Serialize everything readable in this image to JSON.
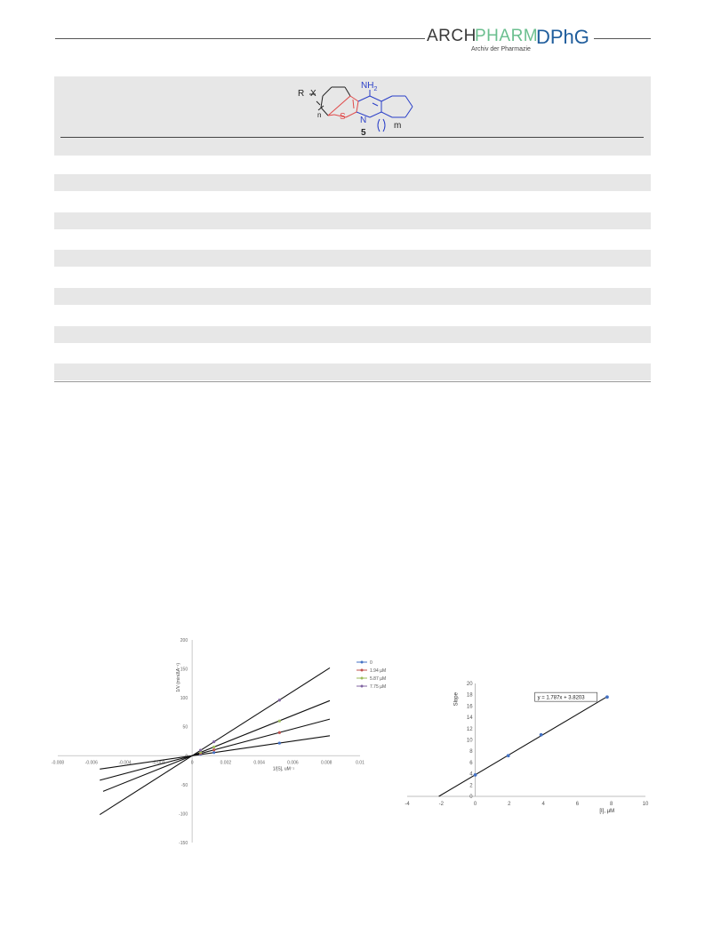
{
  "header": {
    "logo_arch": "ARCH",
    "logo_pharm": "PHARM",
    "logo_dphg": "DPhG",
    "logo_subtitle": "Archiv der Pharmazie"
  },
  "structure": {
    "r_x_label": "R",
    "x_label": "X",
    "n_label": "n",
    "nh2_label": "NH",
    "nh2_sub": "2",
    "s_label": "S",
    "n_atom_label": "N",
    "m_label": "m",
    "compound_number": "5"
  },
  "table": {
    "stripe_count": 6
  },
  "colors": {
    "table_shade": "#e7e7e7",
    "thiophene_ring": "#e04a4a",
    "quinoline_ring": "#2a3fc8",
    "series_0": "#4472c4",
    "series_1": "#c0504d",
    "series_2": "#9bbb59",
    "series_3": "#8064a2"
  },
  "chart_data": [
    {
      "type": "line",
      "xlabel": "1/[S], uM⁻¹",
      "ylabel": "1/V (min/ΔA⁻¹)",
      "xlim": [
        -0.008,
        0.01
      ],
      "ylim": [
        -150,
        200
      ],
      "xticks": [
        "-0.008",
        "-0.006",
        "-0.004",
        "-0.002",
        "0",
        "0.002",
        "0.004",
        "0.006",
        "0.008",
        "0.01"
      ],
      "yticks": [
        "-150",
        "-100",
        "-50",
        "0",
        "50",
        "100",
        "150",
        "200"
      ],
      "legend_position": "right",
      "series": [
        {
          "name": "0",
          "color": "#4472c4",
          "slope": 4200,
          "intercept": 0,
          "points": [
            [
              0.0005,
              2.5
            ],
            [
              0.0013,
              5.5
            ],
            [
              0.0052,
              21.8
            ]
          ],
          "line_range": [
            -0.0055,
            0.0082
          ]
        },
        {
          "name": "1.94 µM",
          "color": "#c0504d",
          "slope": 7700,
          "intercept": 0,
          "points": [
            [
              0.0005,
              4
            ],
            [
              0.0013,
              10
            ],
            [
              0.0052,
              40
            ]
          ],
          "line_range": [
            -0.0055,
            0.0082
          ]
        },
        {
          "name": "5.87 µM",
          "color": "#9bbb59",
          "slope": 11600,
          "intercept": 0,
          "points": [
            [
              0.0005,
              6
            ],
            [
              0.0013,
              15
            ],
            [
              0.0052,
              60
            ]
          ],
          "line_range": [
            -0.0053,
            0.0082
          ]
        },
        {
          "name": "7.75 µM",
          "color": "#8064a2",
          "slope": 18500,
          "intercept": 0,
          "points": [
            [
              0.0005,
              9.5
            ],
            [
              0.0013,
              24
            ],
            [
              0.0052,
              96
            ]
          ],
          "line_range": [
            -0.0055,
            0.0082
          ]
        }
      ]
    },
    {
      "type": "scatter",
      "xlabel": "[I], µM",
      "ylabel": "Slope",
      "xlim": [
        -4,
        10
      ],
      "ylim": [
        0,
        20
      ],
      "xticks": [
        "-4",
        "-2",
        "0",
        "2",
        "4",
        "6",
        "8",
        "10"
      ],
      "yticks": [
        "0",
        "2",
        "4",
        "6",
        "8",
        "10",
        "12",
        "14",
        "16",
        "18",
        "20"
      ],
      "equation": "y = 1.787x + 3.8203",
      "trendline": {
        "slope": 1.787,
        "intercept": 3.8203,
        "x_range": [
          -2.14,
          7.75
        ]
      },
      "series": [
        {
          "name": "",
          "color": "#4472c4",
          "x": [
            0,
            1.94,
            3.87,
            7.75
          ],
          "y": [
            3.8,
            7.2,
            10.9,
            17.6
          ]
        }
      ]
    }
  ]
}
